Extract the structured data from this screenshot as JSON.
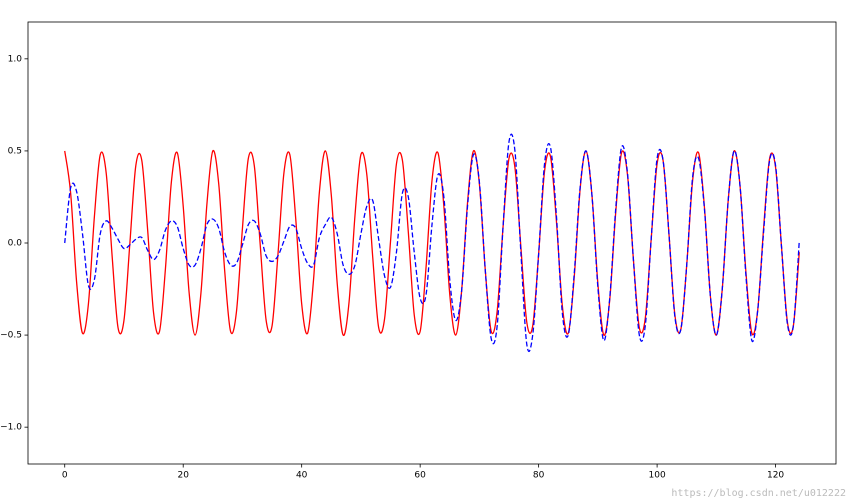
{
  "chart_data": {
    "type": "line",
    "x": [
      0,
      1,
      2,
      3,
      4,
      5,
      6,
      7,
      8,
      9,
      10,
      11,
      12,
      13,
      14,
      15,
      16,
      17,
      18,
      19,
      20,
      21,
      22,
      23,
      24,
      25,
      26,
      27,
      28,
      29,
      30,
      31,
      32,
      33,
      34,
      35,
      36,
      37,
      38,
      39,
      40,
      41,
      42,
      43,
      44,
      45,
      46,
      47,
      48,
      49,
      50,
      51,
      52,
      53,
      54,
      55,
      56,
      57,
      58,
      59,
      60,
      61,
      62,
      63,
      64,
      65,
      66,
      67,
      68,
      69,
      70,
      71,
      72,
      73,
      74,
      75,
      76,
      77,
      78,
      79,
      80,
      81,
      82,
      83,
      84,
      85,
      86,
      87,
      88,
      89,
      90,
      91,
      92,
      93,
      94,
      95,
      96,
      97,
      98,
      99,
      100,
      101,
      102,
      103,
      104,
      105,
      106,
      107,
      108,
      109,
      110,
      111,
      112,
      113,
      114,
      115,
      116,
      117,
      118,
      119,
      120,
      121,
      122,
      123,
      124
    ],
    "series": [
      {
        "color": "#ff0000",
        "style": "solid",
        "values": [
          0.5,
          0.27,
          -0.21,
          -0.49,
          -0.33,
          0.14,
          0.48,
          0.38,
          -0.07,
          -0.46,
          -0.42,
          0,
          0.42,
          0.45,
          0.07,
          -0.38,
          -0.48,
          -0.14,
          0.33,
          0.49,
          0.2,
          -0.27,
          -0.5,
          -0.27,
          0.21,
          0.5,
          0.32,
          -0.15,
          -0.48,
          -0.37,
          0.08,
          0.46,
          0.42,
          -0.01,
          -0.42,
          -0.45,
          -0.06,
          0.38,
          0.48,
          0.13,
          -0.33,
          -0.49,
          -0.2,
          0.28,
          0.5,
          0.26,
          -0.22,
          -0.5,
          -0.32,
          0.15,
          0.48,
          0.37,
          -0.08,
          -0.46,
          -0.41,
          0.01,
          0.43,
          0.45,
          0.06,
          -0.39,
          -0.48,
          -0.13,
          0.34,
          0.49,
          0.2,
          -0.28,
          -0.5,
          -0.26,
          0.22,
          0.5,
          0.32,
          -0.15,
          -0.48,
          -0.37,
          0.09,
          0.46,
          0.41,
          -0.02,
          -0.43,
          -0.45,
          -0.06,
          0.39,
          0.47,
          0.12,
          -0.34,
          -0.49,
          -0.19,
          0.29,
          0.5,
          0.26,
          -0.22,
          -0.5,
          -0.31,
          0.16,
          0.49,
          0.37,
          -0.09,
          -0.46,
          -0.41,
          0.02,
          0.43,
          0.45,
          0.05,
          -0.39,
          -0.47,
          -0.12,
          0.34,
          0.49,
          0.19,
          -0.29,
          -0.5,
          -0.25,
          0.23,
          0.5,
          0.31,
          -0.16,
          -0.49,
          -0.36,
          0.09,
          0.46,
          0.41,
          -0.02,
          -0.43,
          -0.45,
          -0.05
        ]
      },
      {
        "color": "#0000ff",
        "style": "dashed",
        "values": [
          0,
          0.3,
          0.28,
          0.05,
          -0.23,
          -0.2,
          0.05,
          0.12,
          0.08,
          0.02,
          -0.03,
          -0.01,
          0.02,
          0.03,
          -0.04,
          -0.09,
          -0.04,
          0.07,
          0.12,
          0.09,
          -0.03,
          -0.12,
          -0.12,
          -0.03,
          0.1,
          0.13,
          0.08,
          -0.05,
          -0.12,
          -0.11,
          -0.01,
          0.1,
          0.12,
          0.05,
          -0.07,
          -0.1,
          -0.07,
          0.01,
          0.09,
          0.08,
          -0.03,
          -0.11,
          -0.12,
          0.03,
          0.1,
          0.14,
          0.05,
          -0.12,
          -0.17,
          -0.12,
          0.05,
          0.2,
          0.23,
          0.02,
          -0.18,
          -0.24,
          -0.05,
          0.27,
          0.25,
          -0.05,
          -0.3,
          -0.28,
          0.1,
          0.37,
          0.25,
          -0.2,
          -0.42,
          -0.26,
          0.2,
          0.48,
          0.33,
          -0.15,
          -0.52,
          -0.45,
          0.09,
          0.55,
          0.5,
          -0.05,
          -0.55,
          -0.5,
          -0.06,
          0.43,
          0.52,
          0.15,
          -0.38,
          -0.5,
          -0.17,
          0.3,
          0.5,
          0.26,
          -0.24,
          -0.53,
          -0.3,
          0.18,
          0.52,
          0.38,
          -0.09,
          -0.5,
          -0.45,
          0.02,
          0.46,
          0.45,
          0.05,
          -0.4,
          -0.47,
          -0.12,
          0.36,
          0.46,
          0.18,
          -0.29,
          -0.5,
          -0.25,
          0.23,
          0.5,
          0.31,
          -0.18,
          -0.53,
          -0.36,
          0.07,
          0.45,
          0.42,
          -0.02,
          -0.44,
          -0.45,
          0.01
        ]
      }
    ],
    "xlim": [
      -6.2,
      130.2
    ],
    "xticks": [
      0,
      20,
      40,
      60,
      80,
      100,
      120
    ],
    "ylim": [
      -1.2,
      1.2
    ],
    "yticks": [
      {
        "value": -1,
        "label": "−1.0"
      },
      {
        "value": -0.5,
        "label": "−0.5"
      },
      {
        "value": 0,
        "label": "0.0"
      },
      {
        "value": 0.5,
        "label": "0.5"
      },
      {
        "value": 1,
        "label": "1.0"
      }
    ],
    "watermark": "https://blog.csdn.net/u012222"
  }
}
